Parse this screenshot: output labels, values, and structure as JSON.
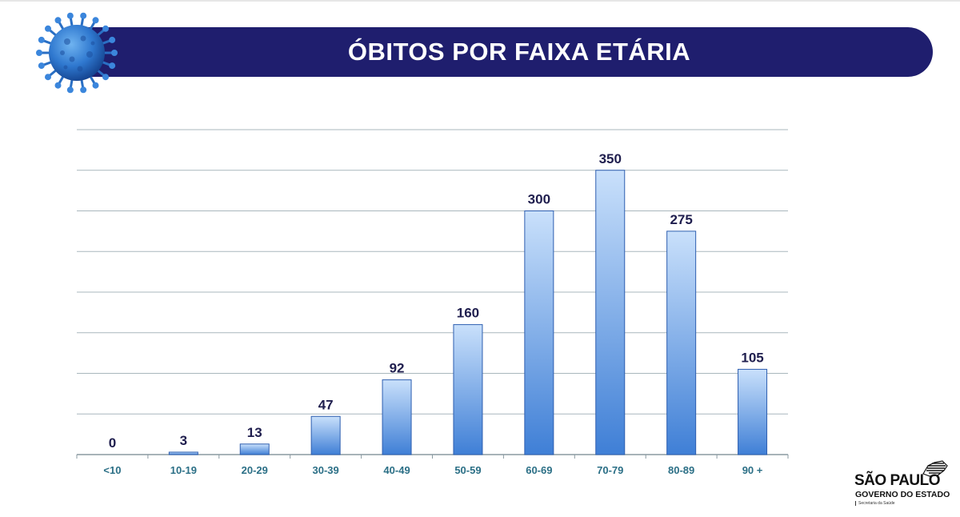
{
  "header": {
    "title": "ÓBITOS POR FAIXA ETÁRIA",
    "banner_color": "#1f1e6e"
  },
  "logo": {
    "line1": "SÃO PAULO",
    "line2": "GOVERNO DO ESTADO",
    "line3": "Secretaria da Saúde"
  },
  "chart_data": {
    "type": "bar",
    "title": "ÓBITOS POR FAIXA ETÁRIA",
    "xlabel": "",
    "ylabel": "",
    "categories": [
      "<10",
      "10-19",
      "20-29",
      "30-39",
      "40-49",
      "50-59",
      "60-69",
      "70-79",
      "80-89",
      "90 +"
    ],
    "values": [
      0,
      3,
      13,
      47,
      92,
      160,
      300,
      350,
      275,
      105
    ],
    "data_labels": [
      "0",
      "3",
      "13",
      "47",
      "92",
      "160",
      "300",
      "350",
      "275",
      "105"
    ],
    "ylim": [
      0,
      400
    ],
    "grid": true,
    "legend": "none",
    "colors": {
      "bar_top": "#c9e0fb",
      "bar_bottom": "#3f7fd6",
      "bar_edge": "#2e5fb0",
      "grid": "#a9b7bd",
      "label": "#1f1e4e",
      "tick": "#2b6f86"
    }
  }
}
